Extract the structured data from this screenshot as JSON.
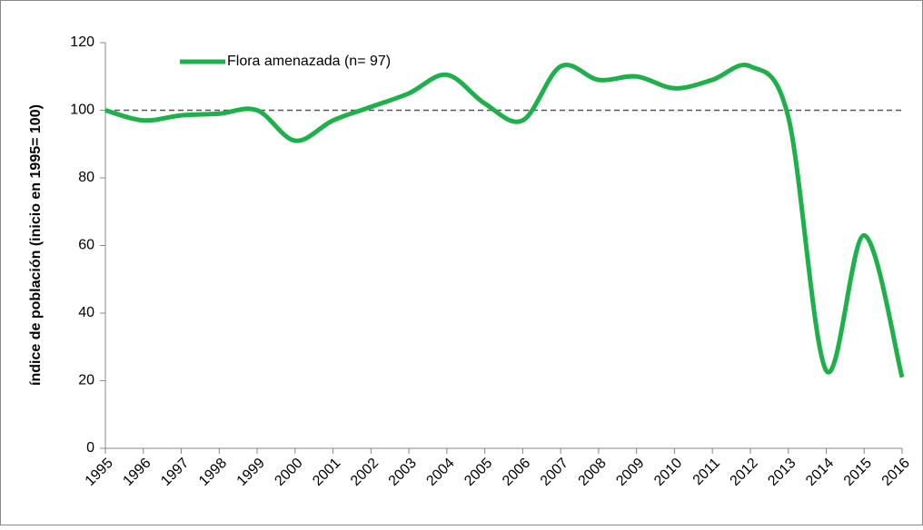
{
  "chart_data": {
    "type": "line",
    "y_label": "índice de población (inicio en 1995= 100)",
    "x": [
      1995,
      1996,
      1997,
      1998,
      1999,
      2000,
      2001,
      2002,
      2003,
      2004,
      2005,
      2006,
      2007,
      2008,
      2009,
      2010,
      2011,
      2012,
      2013,
      2014,
      2015,
      2016
    ],
    "series": [
      {
        "name": "Flora amenazada (n= 97)",
        "color": "#1db04b",
        "values": [
          100,
          97,
          98.5,
          99,
          100,
          91,
          97,
          101,
          105,
          110.5,
          102,
          97,
          113,
          109,
          110,
          106.5,
          109,
          113,
          98,
          23,
          63,
          21
        ]
      }
    ],
    "xlim": [
      1995,
      2016
    ],
    "xticks": [
      1995,
      1996,
      1997,
      1998,
      1999,
      2000,
      2001,
      2002,
      2003,
      2004,
      2005,
      2006,
      2007,
      2008,
      2009,
      2010,
      2011,
      2012,
      2013,
      2014,
      2015,
      2016
    ],
    "ylim": [
      0,
      120
    ],
    "yticks": [
      0,
      20,
      40,
      60,
      80,
      100,
      120
    ],
    "reference_line": 100,
    "smooth": true,
    "legend": "top-left"
  }
}
